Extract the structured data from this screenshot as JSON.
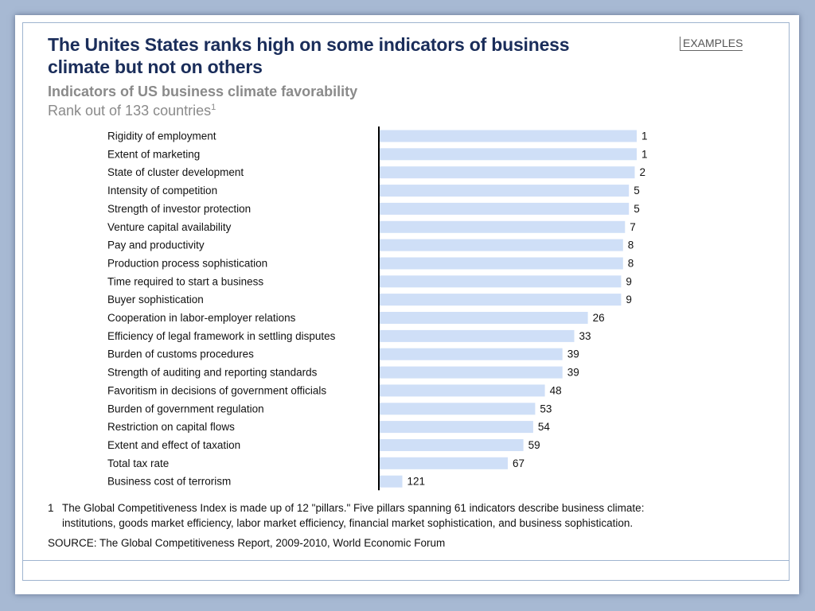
{
  "slide": {
    "title": "The Unites States ranks high on some indicators of business climate but not on others",
    "tag": "EXAMPLES",
    "subtitle": "Indicators of US business climate favorability",
    "rank_label": "Rank out of 133 countries",
    "rank_label_sup": "1",
    "footnote_num": "1",
    "footnote_line1": "The Global Competitiveness Index is made up of 12 \"pillars.\" Five pillars spanning 61 indicators describe business climate:",
    "footnote_line2": "institutions, goods market efficiency, labor market efficiency, financial market sophistication, and business sophistication.",
    "source": "SOURCE: The Global Competitiveness Report, 2009-2010, World Economic Forum"
  },
  "colors": {
    "bar": "#cfdff7",
    "axis": "#000000",
    "title": "#1a2d5a",
    "subtitle": "#8a8a8a",
    "background": "#a7b9d3",
    "frame": "#9fb4cf"
  },
  "chart_data": {
    "type": "bar",
    "orientation": "horizontal",
    "categories": [
      "Rigidity of employment",
      "Extent of marketing",
      "State of cluster development",
      "Intensity of competition",
      "Strength of investor protection",
      "Venture capital availability",
      "Pay and productivity",
      "Production process sophistication",
      "Time required to start a business",
      "Buyer sophistication",
      "Cooperation in labor-employer relations",
      "Efficiency of legal framework in settling disputes",
      "Burden of customs procedures",
      "Strength of auditing and reporting standards",
      "Favoritism in decisions of government officials",
      "Burden of government regulation",
      "Restriction on capital flows",
      "Extent and effect of taxation",
      "Total tax rate",
      "Business cost of terrorism"
    ],
    "values": [
      1,
      1,
      2,
      5,
      5,
      7,
      8,
      8,
      9,
      9,
      26,
      33,
      39,
      39,
      48,
      53,
      54,
      59,
      67,
      121
    ],
    "rank_max": 133,
    "bar_length_rule": "133 - rank",
    "title": "Indicators of US business climate favorability",
    "xlabel": "",
    "ylabel": "",
    "grid": false,
    "legend": "none"
  }
}
